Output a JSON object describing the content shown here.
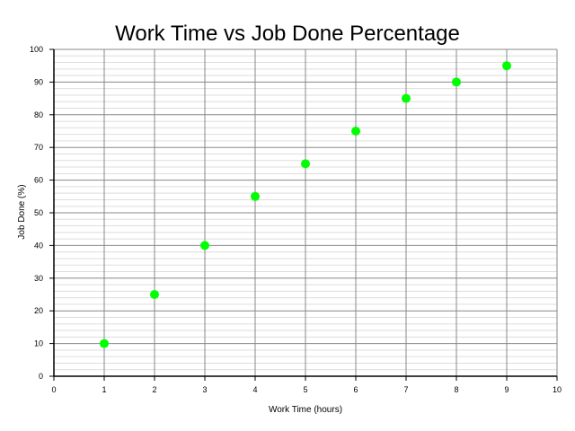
{
  "chart_data": {
    "type": "scatter",
    "title": "Work Time vs Job Done Percentage",
    "xlabel": "Work Time (hours)",
    "ylabel": "Job Done (%)",
    "xlim": [
      0,
      10
    ],
    "ylim": [
      0,
      100
    ],
    "xticks": [
      0,
      1,
      2,
      3,
      4,
      5,
      6,
      7,
      8,
      9,
      10
    ],
    "yticks": [
      0,
      10,
      20,
      30,
      40,
      50,
      60,
      70,
      80,
      90,
      100
    ],
    "grid": true,
    "x": [
      1,
      2,
      3,
      4,
      5,
      6,
      7,
      8,
      9
    ],
    "y": [
      10,
      25,
      40,
      55,
      65,
      75,
      85,
      90,
      95
    ],
    "point_color": "#00ff00",
    "major_grid_color": "#888888",
    "minor_grid_color": "#dddddd"
  }
}
